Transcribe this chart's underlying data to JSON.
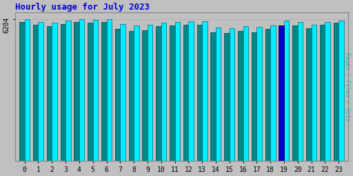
{
  "title": "Hourly usage for July 2023",
  "hours": [
    0,
    1,
    2,
    3,
    4,
    5,
    6,
    7,
    8,
    9,
    10,
    11,
    12,
    13,
    14,
    15,
    16,
    17,
    18,
    19,
    20,
    21,
    22,
    23
  ],
  "hits": [
    6204,
    6100,
    6050,
    6150,
    6204,
    6180,
    6204,
    6000,
    5950,
    5970,
    6050,
    6080,
    6120,
    6130,
    5850,
    5820,
    5900,
    5870,
    5940,
    6150,
    6100,
    5970,
    6100,
    6150
  ],
  "pages": [
    6100,
    5980,
    5920,
    6000,
    6100,
    6050,
    6100,
    5780,
    5700,
    5740,
    5900,
    5940,
    5970,
    5980,
    5650,
    5600,
    5700,
    5640,
    5780,
    5950,
    5950,
    5820,
    5960,
    6050
  ],
  "color_hits": "#00eeff",
  "color_pages": "#008888",
  "color_blue": "#0000cc",
  "bg_color": "#c0c0c0",
  "title_color": "#0000cc",
  "ylabel_right": "Pages / Files / Hits",
  "ytick_label": "6204",
  "ylim_min": 0,
  "ylim_max": 6500,
  "bar_edgecolor_hits": "#006688",
  "bar_edgecolor_pages": "#004444"
}
